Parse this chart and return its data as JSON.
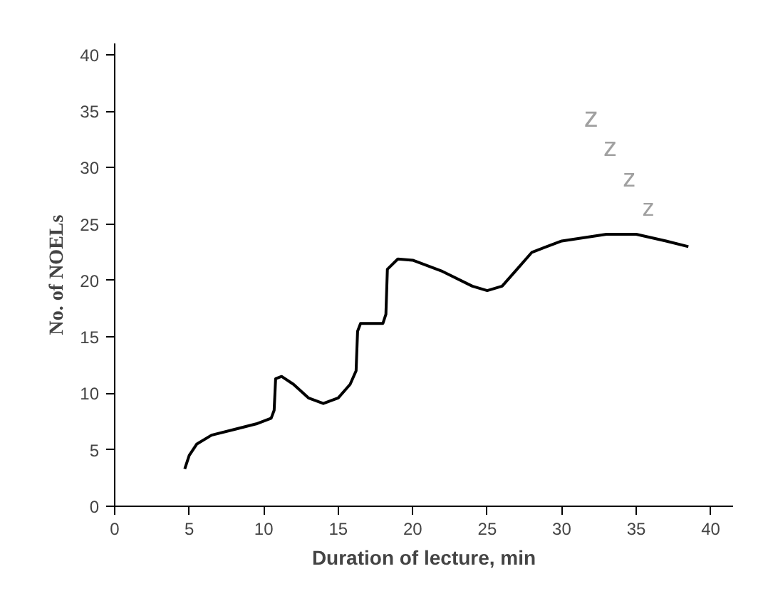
{
  "chart_data": {
    "type": "line",
    "xlabel": "Duration of lecture, min",
    "ylabel": "No. of NOELs",
    "xlim": [
      0,
      41.5
    ],
    "ylim": [
      0,
      41
    ],
    "xticks": [
      0,
      5,
      10,
      15,
      20,
      25,
      30,
      35,
      40
    ],
    "yticks": [
      0,
      5,
      10,
      15,
      20,
      25,
      30,
      35,
      40
    ],
    "marker": "none",
    "line_style": "solid",
    "annotations": [
      "z",
      "z",
      "z",
      "z"
    ],
    "series": [
      {
        "color": "#000000",
        "x": [
          4.7,
          5,
          5.5,
          6.5,
          8,
          9.5,
          10.5,
          10.7,
          10.8,
          11.2,
          12,
          13,
          14,
          15,
          15.8,
          16.2,
          16.3,
          16.5,
          18,
          18.2,
          18.3,
          19,
          20,
          22,
          24,
          25,
          26,
          27,
          28,
          30,
          33,
          35,
          37,
          38.5
        ],
        "values": [
          3.3,
          4.5,
          5.5,
          6.3,
          6.8,
          7.3,
          7.8,
          8.5,
          11.3,
          11.5,
          10.8,
          9.6,
          9.1,
          9.6,
          10.8,
          12,
          15.5,
          16.2,
          16.2,
          17,
          21,
          21.9,
          21.8,
          20.8,
          19.5,
          19.1,
          19.5,
          21,
          22.5,
          23.5,
          24.1,
          24.1,
          23.5,
          23
        ]
      }
    ]
  }
}
